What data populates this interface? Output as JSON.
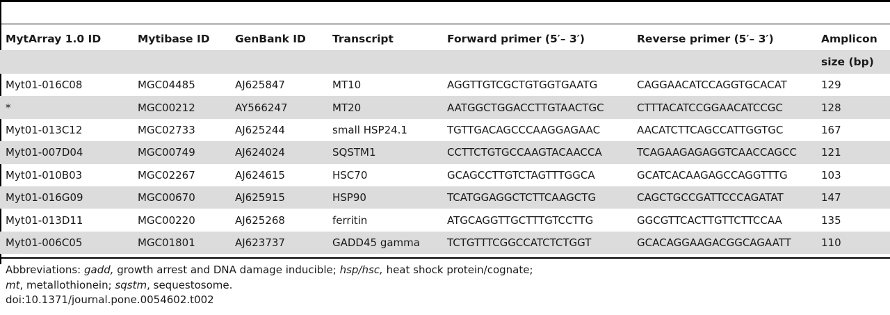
{
  "table": {
    "headers": {
      "col1": "MytArray 1.0 ID",
      "col2": "Mytibase ID",
      "col3": "GenBank ID",
      "col4": "Transcript",
      "col5": "Forward primer (5′– 3′)",
      "col6": "Reverse primer (5′– 3′)",
      "col7_line1": "Amplicon",
      "col7_line2": "size (bp)"
    },
    "rows": [
      {
        "myt": "Myt01-016C08",
        "mytibase": "MGC04485",
        "genbank": "AJ625847",
        "transcript": "MT10",
        "forward": "AGGTTGTCGCTGTGGTGAATG",
        "reverse": "CAGGAACATCCAGGTGCACAT",
        "size": "129"
      },
      {
        "myt": "*",
        "mytibase": "MGC00212",
        "genbank": "AY566247",
        "transcript": "MT20",
        "forward": "AATGGCTGGACCTTGTAACTGC",
        "reverse": "CTTTACATCCGGAACATCCGC",
        "size": "128"
      },
      {
        "myt": "Myt01-013C12",
        "mytibase": "MGC02733",
        "genbank": "AJ625244",
        "transcript": "small HSP24.1",
        "forward": "TGTTGACAGCCCAAGGAGAAC",
        "reverse": "AACATCTTCAGCCATTGGTGC",
        "size": "167"
      },
      {
        "myt": "Myt01-007D04",
        "mytibase": "MGC00749",
        "genbank": "AJ624024",
        "transcript": "SQSTM1",
        "forward": "CCTTCTGTGCCAAGTACAACCA",
        "reverse": "TCAGAAGAGAGGTCAACCAGCC",
        "size": "121"
      },
      {
        "myt": "Myt01-010B03",
        "mytibase": "MGC02267",
        "genbank": "AJ624615",
        "transcript": "HSC70",
        "forward": "GCAGCCTTGTCTAGTTTGGCA",
        "reverse": "GCATCACAAGAGCCAGGTTTG",
        "size": "103"
      },
      {
        "myt": "Myt01-016G09",
        "mytibase": "MGC00670",
        "genbank": "AJ625915",
        "transcript": "HSP90",
        "forward": "TCATGGAGGCTCTTCAAGCTG",
        "reverse": "CAGCTGCCGATTCCCAGATAT",
        "size": "147"
      },
      {
        "myt": "Myt01-013D11",
        "mytibase": "MGC00220",
        "genbank": "AJ625268",
        "transcript": "ferritin",
        "forward": "ATGCAGGTTGCTTTGTCCTTG",
        "reverse": "GGCGTTCACTTGTTCTTCCAA",
        "size": "135"
      },
      {
        "myt": "Myt01-006C05",
        "mytibase": "MGC01801",
        "genbank": "AJ623737",
        "transcript": "GADD45 gamma",
        "forward": "TCTGTTTCGGCCATCTCTGGT",
        "reverse": "GCACAGGAAGACGGCAGAATT",
        "size": "110"
      }
    ]
  },
  "footnotes": {
    "abbr_label": "Abbreviations: ",
    "gadd_term": "gadd,",
    "gadd_def": " growth arrest and DNA damage inducible; ",
    "hsp_term": "hsp/hsc,",
    "hsp_def": " heat shock protein/cognate;",
    "mt_term": "mt",
    "mt_def": ", metallothionein; ",
    "sqstm_term": "sqstm",
    "sqstm_def": ", sequestosome.",
    "doi": "doi:10.1371/journal.pone.0054602.t002"
  }
}
